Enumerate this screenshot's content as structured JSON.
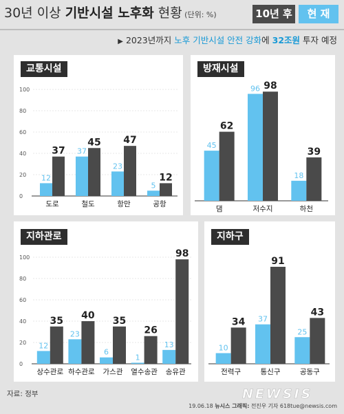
{
  "header": {
    "title_part1": "30년 이상 ",
    "title_bold": "기반시설 노후화",
    "title_part2": " 현황",
    "unit": " (단위: %)",
    "legend_future": "10년 후",
    "legend_now": "현 재"
  },
  "subtitle": {
    "prefix": "2023년까지 ",
    "highlight": "노후 기반시설 안전 강화",
    "mid": "에 ",
    "amount": "32조원",
    "suffix": " 투자 예정"
  },
  "colors": {
    "now": "#62c2ef",
    "future": "#4a4a4a",
    "panel_title_bg": "#2e2e2e",
    "background": "#e3e3e3"
  },
  "source": "자료: 정부",
  "credit": {
    "date": "19.06.18 ",
    "org": "뉴시스 그래픽:",
    "author": " 전진우 기자 618tue@newsis.com"
  },
  "logo": "NEWSIS",
  "chart_data": [
    {
      "type": "bar",
      "title": "교통시설",
      "categories": [
        "도로",
        "철도",
        "항만",
        "공항"
      ],
      "series": [
        {
          "name": "현 재",
          "values": [
            12,
            37,
            23,
            5
          ]
        },
        {
          "name": "10년 후",
          "values": [
            37,
            45,
            47,
            12
          ]
        }
      ],
      "yticks": [
        0,
        20,
        40,
        60,
        80,
        100
      ],
      "ylim": [
        0,
        100
      ]
    },
    {
      "type": "bar",
      "title": "방재시설",
      "categories": [
        "댐",
        "저수지",
        "하천"
      ],
      "series": [
        {
          "name": "현 재",
          "values": [
            45,
            96,
            18
          ]
        },
        {
          "name": "10년 후",
          "values": [
            62,
            98,
            39
          ]
        }
      ],
      "ylim": [
        0,
        100
      ]
    },
    {
      "type": "bar",
      "title": "지하관로",
      "categories": [
        "상수관로",
        "하수관로",
        "가스관",
        "열수송관",
        "송유관"
      ],
      "series": [
        {
          "name": "현 재",
          "values": [
            12,
            23,
            6,
            1,
            13
          ]
        },
        {
          "name": "10년 후",
          "values": [
            35,
            40,
            35,
            26,
            98
          ]
        }
      ],
      "yticks": [
        0,
        20,
        40,
        60,
        80,
        100
      ],
      "ylim": [
        0,
        100
      ]
    },
    {
      "type": "bar",
      "title": "지하구",
      "categories": [
        "전력구",
        "통신구",
        "공동구"
      ],
      "series": [
        {
          "name": "현 재",
          "values": [
            10,
            37,
            25
          ]
        },
        {
          "name": "10년 후",
          "values": [
            34,
            91,
            43
          ]
        }
      ],
      "ylim": [
        0,
        100
      ]
    }
  ]
}
